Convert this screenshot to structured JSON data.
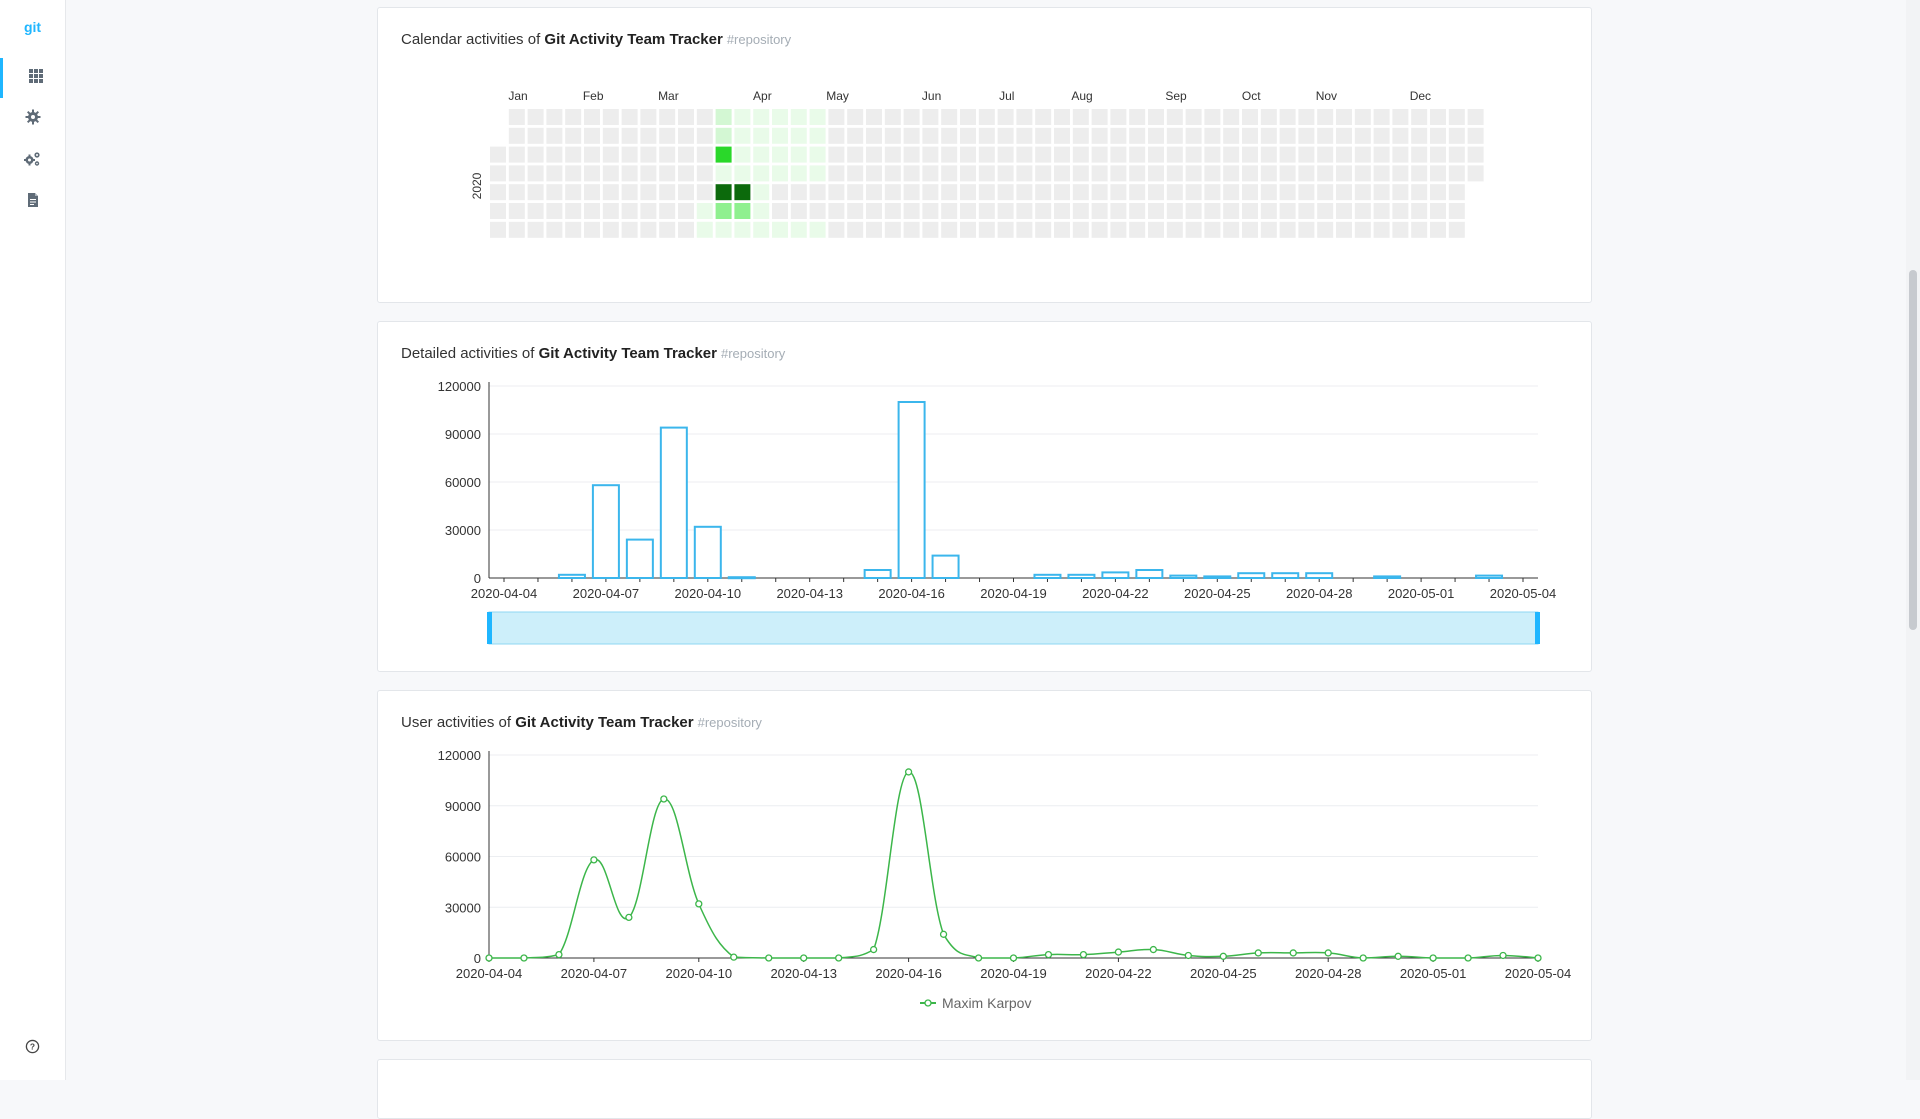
{
  "app": {
    "logo": "git"
  },
  "sidebar": {
    "items": [
      {
        "icon": "grid-icon",
        "active": true
      },
      {
        "icon": "gear-icon",
        "active": false
      },
      {
        "icon": "gears-icon",
        "active": false
      },
      {
        "icon": "document-icon",
        "active": false
      }
    ],
    "help_icon": "help-circle-icon"
  },
  "repo": {
    "name": "Git Activity Team Tracker",
    "tag": "#repository"
  },
  "cards": {
    "calendar": {
      "prefix": "Calendar activities of "
    },
    "detailed": {
      "prefix": "Detailed activities of "
    },
    "user": {
      "prefix": "User activities of "
    }
  },
  "colors": {
    "accent": "#1fb6ff",
    "bar": "#3bb6ec",
    "zoom_fill": "#cdeffa",
    "line": "#3cb64a",
    "cell_empty": "#ededed",
    "cell_lvl1": "#e9fbe9",
    "cell_lvl2": "#d3f7d3",
    "cell_lvl3": "#8ff08f",
    "cell_lvl4": "#2ad82a",
    "cell_lvl5": "#0c6a0c"
  },
  "chart_data": [
    {
      "type": "heatmap",
      "year": "2020",
      "months": [
        "Jan",
        "Feb",
        "Mar",
        "Apr",
        "May",
        "Jun",
        "Jul",
        "Aug",
        "Sep",
        "Oct",
        "Nov",
        "Dec"
      ],
      "start_date": "2020-01-01",
      "end_date": "2020-12-31",
      "levels": [
        {
          "date": "2020-03-21",
          "level": 1
        },
        {
          "date": "2020-03-22",
          "level": 1
        },
        {
          "date": "2020-03-23",
          "level": 2
        },
        {
          "date": "2020-03-24",
          "level": 2
        },
        {
          "date": "2020-03-25",
          "level": 4
        },
        {
          "date": "2020-03-26",
          "level": 1
        },
        {
          "date": "2020-03-27",
          "level": 5
        },
        {
          "date": "2020-03-28",
          "level": 3
        },
        {
          "date": "2020-03-29",
          "level": 1
        },
        {
          "date": "2020-03-30",
          "level": 1
        },
        {
          "date": "2020-03-31",
          "level": 1
        },
        {
          "date": "2020-04-01",
          "level": 1
        },
        {
          "date": "2020-04-02",
          "level": 1
        },
        {
          "date": "2020-04-03",
          "level": 5
        },
        {
          "date": "2020-04-04",
          "level": 3
        },
        {
          "date": "2020-04-05",
          "level": 1
        },
        {
          "date": "2020-04-06",
          "level": 1
        },
        {
          "date": "2020-04-07",
          "level": 1
        },
        {
          "date": "2020-04-08",
          "level": 1
        },
        {
          "date": "2020-04-09",
          "level": 1
        },
        {
          "date": "2020-04-10",
          "level": 1
        },
        {
          "date": "2020-04-11",
          "level": 1
        },
        {
          "date": "2020-04-12",
          "level": 1
        },
        {
          "date": "2020-04-13",
          "level": 1
        },
        {
          "date": "2020-04-14",
          "level": 1
        },
        {
          "date": "2020-04-15",
          "level": 1
        },
        {
          "date": "2020-04-16",
          "level": 1
        },
        {
          "date": "2020-04-19",
          "level": 1
        },
        {
          "date": "2020-04-20",
          "level": 1
        },
        {
          "date": "2020-04-21",
          "level": 1
        },
        {
          "date": "2020-04-22",
          "level": 1
        },
        {
          "date": "2020-04-23",
          "level": 1
        },
        {
          "date": "2020-04-26",
          "level": 1
        },
        {
          "date": "2020-04-27",
          "level": 1
        },
        {
          "date": "2020-04-28",
          "level": 1
        },
        {
          "date": "2020-04-29",
          "level": 1
        },
        {
          "date": "2020-04-30",
          "level": 1
        },
        {
          "date": "2020-05-03",
          "level": 1
        }
      ]
    },
    {
      "type": "bar",
      "xlabels": [
        "2020-04-04",
        "2020-04-07",
        "2020-04-10",
        "2020-04-13",
        "2020-04-16",
        "2020-04-19",
        "2020-04-22",
        "2020-04-25",
        "2020-04-28",
        "2020-05-01",
        "2020-05-04"
      ],
      "x": [
        "2020-04-04",
        "2020-04-05",
        "2020-04-06",
        "2020-04-07",
        "2020-04-08",
        "2020-04-09",
        "2020-04-10",
        "2020-04-11",
        "2020-04-12",
        "2020-04-13",
        "2020-04-14",
        "2020-04-15",
        "2020-04-16",
        "2020-04-17",
        "2020-04-18",
        "2020-04-19",
        "2020-04-20",
        "2020-04-21",
        "2020-04-22",
        "2020-04-23",
        "2020-04-24",
        "2020-04-25",
        "2020-04-26",
        "2020-04-27",
        "2020-04-28",
        "2020-04-29",
        "2020-04-30",
        "2020-05-01",
        "2020-05-02",
        "2020-05-03",
        "2020-05-04"
      ],
      "values": [
        0,
        0,
        2000,
        58000,
        24000,
        94000,
        32000,
        500,
        0,
        0,
        0,
        5000,
        110000,
        14000,
        0,
        0,
        2000,
        2000,
        3500,
        5000,
        1500,
        1000,
        3000,
        3000,
        3000,
        0,
        1000,
        0,
        0,
        1500,
        0
      ],
      "ylim": [
        0,
        120000
      ],
      "yticks": [
        "0",
        "30000",
        "60000",
        "90000",
        "120000"
      ]
    },
    {
      "type": "line",
      "xlabels": [
        "2020-04-04",
        "2020-04-07",
        "2020-04-10",
        "2020-04-13",
        "2020-04-16",
        "2020-04-19",
        "2020-04-22",
        "2020-04-25",
        "2020-04-28",
        "2020-05-01",
        "2020-05-04"
      ],
      "x": [
        "2020-04-04",
        "2020-04-05",
        "2020-04-06",
        "2020-04-07",
        "2020-04-08",
        "2020-04-09",
        "2020-04-10",
        "2020-04-11",
        "2020-04-12",
        "2020-04-13",
        "2020-04-14",
        "2020-04-15",
        "2020-04-16",
        "2020-04-17",
        "2020-04-18",
        "2020-04-19",
        "2020-04-20",
        "2020-04-21",
        "2020-04-22",
        "2020-04-23",
        "2020-04-24",
        "2020-04-25",
        "2020-04-26",
        "2020-04-27",
        "2020-04-28",
        "2020-04-29",
        "2020-04-30",
        "2020-05-01",
        "2020-05-02",
        "2020-05-03",
        "2020-05-04"
      ],
      "series": [
        {
          "name": "Maxim Karpov",
          "values": [
            0,
            0,
            2000,
            58000,
            24000,
            94000,
            32000,
            500,
            0,
            0,
            0,
            5000,
            110000,
            14000,
            0,
            0,
            2000,
            2000,
            3500,
            5000,
            1500,
            1000,
            3000,
            3000,
            3000,
            0,
            1000,
            0,
            0,
            1500,
            0
          ]
        }
      ],
      "ylim": [
        0,
        120000
      ],
      "yticks": [
        "0",
        "30000",
        "60000",
        "90000",
        "120000"
      ],
      "legend": "bottom-center"
    }
  ]
}
